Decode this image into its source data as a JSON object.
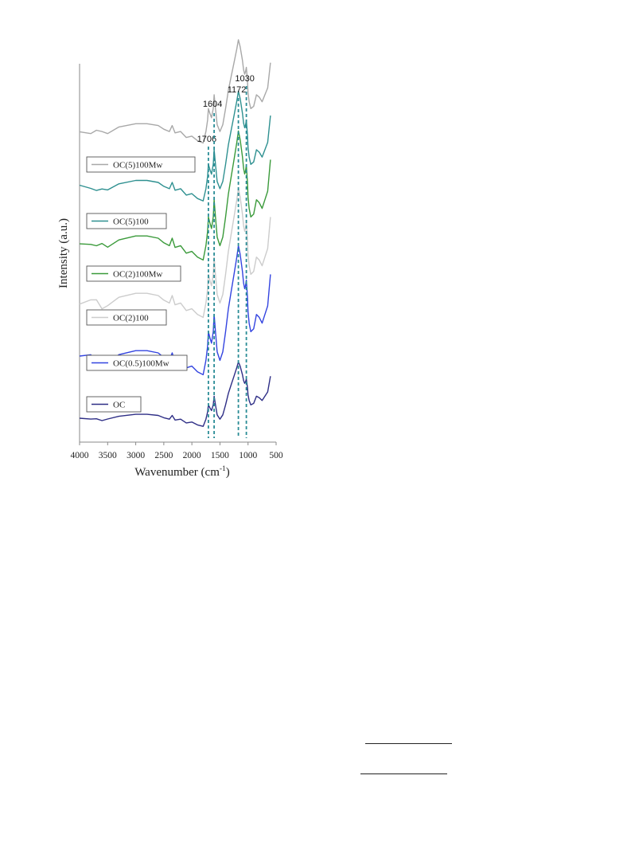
{
  "chart_data": {
    "type": "line",
    "xlabel_main": "Wavenumber (cm",
    "xlabel_sup": "-1",
    "xlabel_end": ")",
    "ylabel": "Intensity (a.u.)",
    "xlim": [
      4000,
      500
    ],
    "x_ticks": [
      4000,
      3500,
      3000,
      2500,
      2000,
      1500,
      1000,
      500
    ],
    "peak_markers": [
      {
        "label": "1706",
        "x": 1706
      },
      {
        "label": "1604",
        "x": 1604
      },
      {
        "label": "1172",
        "x": 1172
      },
      {
        "label": "1030",
        "x": 1030
      }
    ],
    "marker_color": "#2a8c96",
    "x": [
      4000,
      3800,
      3700,
      3600,
      3500,
      3300,
      3000,
      2800,
      2600,
      2500,
      2400,
      2350,
      2300,
      2200,
      2100,
      2000,
      1900,
      1800,
      1750,
      1720,
      1706,
      1680,
      1650,
      1620,
      1604,
      1580,
      1550,
      1500,
      1450,
      1400,
      1350,
      1300,
      1250,
      1200,
      1172,
      1140,
      1100,
      1080,
      1060,
      1045,
      1030,
      1010,
      1000,
      980,
      950,
      900,
      850,
      800,
      750,
      700,
      650,
      600
    ],
    "series": [
      {
        "name": "OC",
        "color": "#2e2e86",
        "offset": 0.0,
        "scale": 0.5,
        "noise": 0.3
      },
      {
        "name": "OC(0.5)100Mw",
        "color": "#3344e0",
        "offset": 1.0,
        "scale": 1.0,
        "noise": 1.4
      },
      {
        "name": "OC(2)100",
        "color": "#cccccc",
        "offset": 2.0,
        "scale": 1.0,
        "noise": 1.2
      },
      {
        "name": "OC(2)100Mw",
        "color": "#3a9a3a",
        "offset": 3.0,
        "scale": 1.0,
        "noise": 1.4
      },
      {
        "name": "OC(5)100",
        "color": "#2e9090",
        "offset": 4.0,
        "scale": 0.85,
        "noise": 0.6
      },
      {
        "name": "OC(5)100Mw",
        "color": "#a8a8a8",
        "offset": 5.0,
        "scale": 0.8,
        "noise": 1.0
      }
    ],
    "base_shape": [
      0.1,
      0.08,
      0.05,
      0.02,
      0.05,
      0.15,
      0.22,
      0.22,
      0.18,
      0.1,
      0.05,
      0.18,
      0.02,
      0.05,
      -0.08,
      -0.05,
      -0.15,
      -0.2,
      0.05,
      0.3,
      0.55,
      0.45,
      0.35,
      0.55,
      0.85,
      0.55,
      0.2,
      0.05,
      0.2,
      0.55,
      0.95,
      1.25,
      1.55,
      1.85,
      2.05,
      1.9,
      1.6,
      1.4,
      1.3,
      1.35,
      1.45,
      1.15,
      0.9,
      0.7,
      0.55,
      0.6,
      0.85,
      0.8,
      0.7,
      0.85,
      1.0,
      1.55
    ]
  },
  "peak_line_color": "#2a8c96"
}
